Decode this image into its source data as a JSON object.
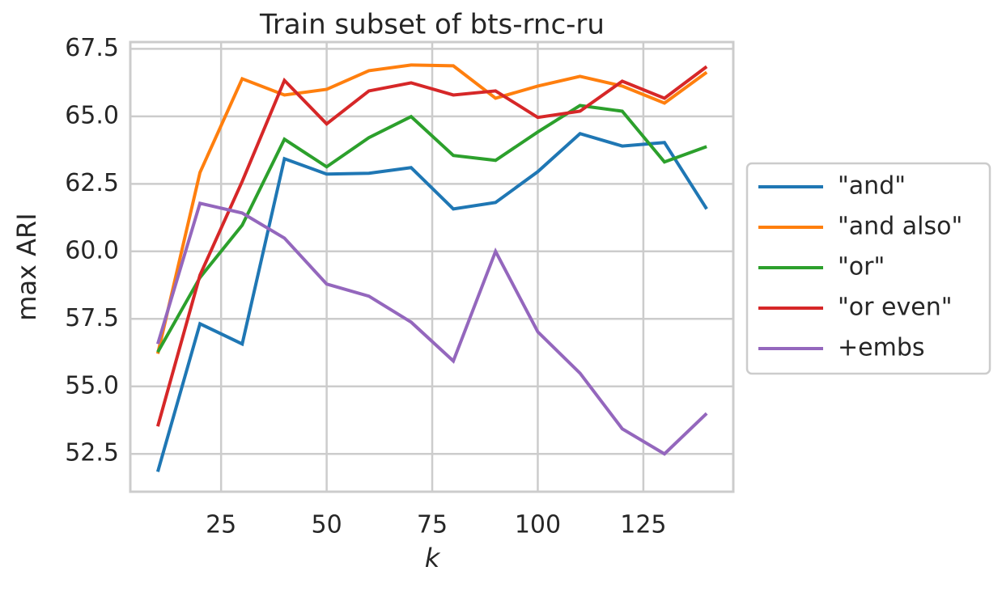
{
  "chart_data": {
    "type": "line",
    "title": "Train subset of bts-rnc-ru",
    "x_label": "k",
    "y_label": "max ARI",
    "x": [
      10,
      20,
      30,
      40,
      50,
      60,
      70,
      80,
      90,
      100,
      110,
      120,
      130,
      140
    ],
    "series": [
      {
        "name": "\"and\"",
        "color": "#1f77b4",
        "values": [
          51.84,
          57.32,
          56.57,
          63.43,
          62.86,
          62.89,
          63.1,
          61.57,
          61.81,
          62.95,
          64.36,
          63.9,
          64.03,
          61.57
        ]
      },
      {
        "name": "\"and also\"",
        "color": "#ff7f0e",
        "values": [
          56.21,
          62.92,
          66.39,
          65.79,
          66.0,
          66.69,
          66.9,
          66.87,
          65.67,
          66.12,
          66.48,
          66.12,
          65.49,
          66.63
        ]
      },
      {
        "name": "\"or\"",
        "color": "#2ca02c",
        "values": [
          56.27,
          59.03,
          60.97,
          64.15,
          63.13,
          64.21,
          64.99,
          63.55,
          63.37,
          64.42,
          65.4,
          65.19,
          63.31,
          63.88
        ]
      },
      {
        "name": "\"or even\"",
        "color": "#d62728",
        "values": [
          53.52,
          59.12,
          62.59,
          66.33,
          64.72,
          65.94,
          66.24,
          65.79,
          65.94,
          64.96,
          65.19,
          66.3,
          65.67,
          66.84
        ]
      },
      {
        "name": "+embs",
        "color": "#9467bd",
        "values": [
          56.57,
          61.78,
          61.42,
          60.49,
          58.79,
          58.34,
          57.38,
          55.94,
          60.0,
          57.02,
          55.49,
          53.43,
          52.5,
          54.0
        ]
      }
    ],
    "xlim": [
      3.5,
      146.3
    ],
    "ylim": [
      51.1,
      67.75
    ],
    "xticks": [
      25,
      50,
      75,
      100,
      125
    ],
    "yticks": [
      {
        "value": 52.5,
        "label": "52.5"
      },
      {
        "value": 55,
        "label": "55.0"
      },
      {
        "value": 57.5,
        "label": "57.5"
      },
      {
        "value": 60,
        "label": "60.0"
      },
      {
        "value": 62.5,
        "label": "62.5"
      },
      {
        "value": 65,
        "label": "65.0"
      },
      {
        "value": 67.5,
        "label": "67.5"
      }
    ],
    "grid": true,
    "legend": "right"
  }
}
